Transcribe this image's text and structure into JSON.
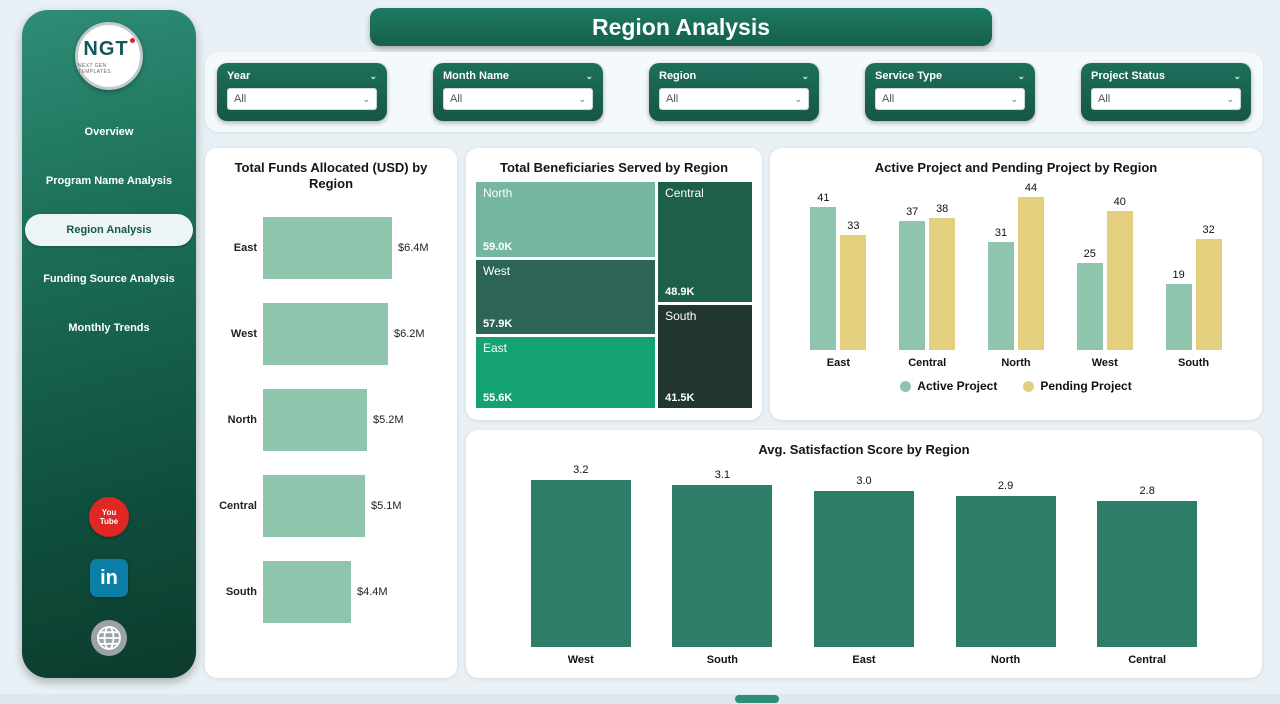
{
  "page": {
    "title": "Region Analysis"
  },
  "sidebar": {
    "logo": {
      "text": "NGT",
      "subtext": "NEXT GEN TEMPLATES"
    },
    "items": [
      {
        "label": "Overview"
      },
      {
        "label": "Program Name Analysis"
      },
      {
        "label": "Region Analysis"
      },
      {
        "label": "Funding Source Analysis"
      },
      {
        "label": "Monthly Trends"
      }
    ],
    "active_index": 2,
    "social": [
      {
        "name": "youtube-icon",
        "label": "You Tube"
      },
      {
        "name": "linkedin-icon",
        "label": "in"
      },
      {
        "name": "website-icon",
        "label": ""
      }
    ]
  },
  "filters": [
    {
      "label": "Year",
      "value": "All"
    },
    {
      "label": "Month Name",
      "value": "All"
    },
    {
      "label": "Region",
      "value": "All"
    },
    {
      "label": "Service Type",
      "value": "All"
    },
    {
      "label": "Project Status",
      "value": "All"
    }
  ],
  "icons": {
    "chevron_down": "⌄"
  },
  "colors": {
    "dark_green": "#1a6b55",
    "sage": "#8fc4ad",
    "khaki": "#e3cf7e",
    "teal_bar": "#2e7d68",
    "youtube_red": "#df2723",
    "linkedin_teal": "#0d7fa6"
  },
  "chart_data": [
    {
      "type": "bar",
      "orientation": "horizontal",
      "title": "Total Funds Allocated (USD) by Region",
      "categories": [
        "East",
        "West",
        "North",
        "Central",
        "South"
      ],
      "values": [
        6.4,
        6.2,
        5.2,
        5.1,
        4.4
      ],
      "labels": [
        "$6.4M",
        "$6.2M",
        "$5.2M",
        "$5.1M",
        "$4.4M"
      ],
      "xlabel": "",
      "ylabel": "",
      "xlim": [
        0,
        7
      ],
      "bar_color": "#8fc4ad",
      "grid": false
    },
    {
      "type": "heatmap",
      "subtype": "treemap",
      "title": "Total Beneficiaries Served by Region",
      "items": [
        {
          "name": "North",
          "value": 59.0,
          "value_label": "59.0K",
          "color": "#74b79e"
        },
        {
          "name": "West",
          "value": 57.9,
          "value_label": "57.9K",
          "color": "#2c6456"
        },
        {
          "name": "East",
          "value": 55.6,
          "value_label": "55.6K",
          "color": "#14a273"
        },
        {
          "name": "Central",
          "value": 48.9,
          "value_label": "48.9K",
          "color": "#1e5f4c"
        },
        {
          "name": "South",
          "value": 41.5,
          "value_label": "41.5K",
          "color": "#20362e"
        }
      ],
      "columns": [
        [
          "North",
          "West",
          "East"
        ],
        [
          "Central",
          "South"
        ]
      ]
    },
    {
      "type": "bar",
      "title": "Active Project and Pending Project by Region",
      "categories": [
        "East",
        "Central",
        "North",
        "West",
        "South"
      ],
      "series": [
        {
          "name": "Active Project",
          "values": [
            41,
            37,
            31,
            25,
            19
          ],
          "color": "#8fc4ad"
        },
        {
          "name": "Pending Project",
          "values": [
            33,
            38,
            44,
            40,
            32
          ],
          "color": "#e3cf7e"
        }
      ],
      "ylim": [
        0,
        46
      ],
      "legend_position": "bottom",
      "grid": false
    },
    {
      "type": "bar",
      "title": "Avg. Satisfaction Score by Region",
      "categories": [
        "West",
        "South",
        "East",
        "North",
        "Central"
      ],
      "values": [
        3.2,
        3.1,
        3.0,
        2.9,
        2.8
      ],
      "labels": [
        "3.2",
        "3.1",
        "3.0",
        "2.9",
        "2.8"
      ],
      "ylim": [
        0,
        3.55
      ],
      "bar_color": "#2e7d68",
      "grid": false
    }
  ]
}
